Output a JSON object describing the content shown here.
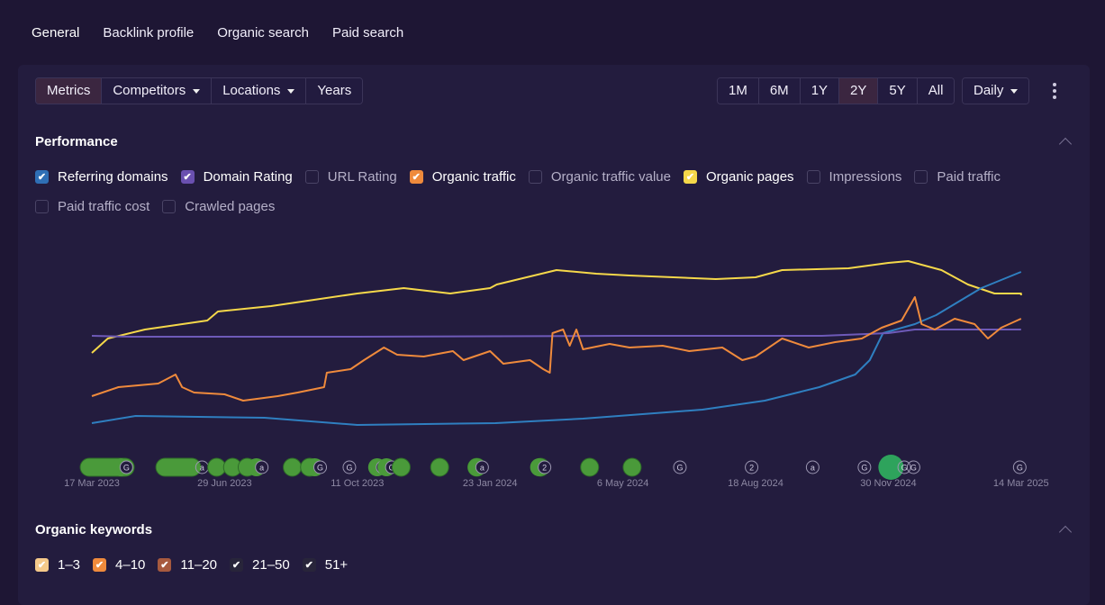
{
  "tabs": [
    "General",
    "Backlink profile",
    "Organic search",
    "Paid search"
  ],
  "toolbar": {
    "left": [
      {
        "label": "Metrics",
        "active": true,
        "dropdown": false
      },
      {
        "label": "Competitors",
        "dropdown": true
      },
      {
        "label": "Locations",
        "dropdown": true
      },
      {
        "label": "Years",
        "dropdown": false
      }
    ],
    "ranges": [
      {
        "label": "1M"
      },
      {
        "label": "6M"
      },
      {
        "label": "1Y"
      },
      {
        "label": "2Y",
        "active": true
      },
      {
        "label": "5Y"
      },
      {
        "label": "All"
      }
    ],
    "interval": "Daily"
  },
  "performance": {
    "title": "Performance",
    "metrics": [
      {
        "label": "Referring domains",
        "checked": true,
        "color": "#2f6fb5"
      },
      {
        "label": "Domain Rating",
        "checked": true,
        "color": "#6a50b0"
      },
      {
        "label": "URL Rating",
        "checked": false
      },
      {
        "label": "Organic traffic",
        "checked": true,
        "color": "#ef8a3c"
      },
      {
        "label": "Organic traffic value",
        "checked": false
      },
      {
        "label": "Organic pages",
        "checked": true,
        "color": "#f5d84a"
      },
      {
        "label": "Impressions",
        "checked": false
      },
      {
        "label": "Paid traffic",
        "checked": false
      },
      {
        "label": "Paid traffic cost",
        "checked": false
      },
      {
        "label": "Crawled pages",
        "checked": false
      }
    ]
  },
  "chart_data": {
    "type": "line",
    "x_ticks": [
      "17 Mar 2023",
      "29 Jun 2023",
      "11 Oct 2023",
      "23 Jan 2024",
      "6 May 2024",
      "18 Aug 2024",
      "30 Nov 2024",
      "14 Mar 2025"
    ],
    "note": "x in tick-index units (0 = 17 Mar 2023, 7 = 14 Mar 2025); y relative 0-100, no axis shown",
    "series": [
      {
        "name": "Organic pages",
        "color": "#f5d84a",
        "points": [
          [
            0,
            44
          ],
          [
            0.12,
            52
          ],
          [
            0.4,
            57
          ],
          [
            0.87,
            62
          ],
          [
            0.95,
            67
          ],
          [
            1.35,
            70
          ],
          [
            2.0,
            77
          ],
          [
            2.35,
            80
          ],
          [
            2.7,
            77
          ],
          [
            3.0,
            80
          ],
          [
            3.05,
            82
          ],
          [
            3.5,
            90
          ],
          [
            3.8,
            88
          ],
          [
            4.05,
            87
          ],
          [
            4.7,
            85
          ],
          [
            5.0,
            86
          ],
          [
            5.2,
            90
          ],
          [
            5.7,
            91
          ],
          [
            6.0,
            94
          ],
          [
            6.15,
            95
          ],
          [
            6.4,
            90
          ],
          [
            6.6,
            82
          ],
          [
            6.8,
            77
          ],
          [
            7.0,
            77
          ],
          [
            7.0,
            76
          ]
        ]
      },
      {
        "name": "Referring domains",
        "color": "#2f7fc0",
        "points": [
          [
            0,
            5
          ],
          [
            0.33,
            9
          ],
          [
            1.3,
            8
          ],
          [
            2.0,
            4
          ],
          [
            3.04,
            5
          ],
          [
            3.7,
            7.5
          ],
          [
            4.6,
            12.5
          ],
          [
            5.07,
            17.5
          ],
          [
            5.48,
            25
          ],
          [
            5.75,
            32
          ],
          [
            5.86,
            40
          ],
          [
            5.96,
            55
          ],
          [
            6.2,
            60
          ],
          [
            6.36,
            65
          ],
          [
            6.7,
            80
          ],
          [
            7.0,
            89
          ]
        ]
      },
      {
        "name": "Domain Rating",
        "color": "#6e5ab8",
        "points": [
          [
            0,
            53.5
          ],
          [
            0.3,
            53
          ],
          [
            2.0,
            53
          ],
          [
            4.0,
            53.5
          ],
          [
            5.5,
            53.5
          ],
          [
            6.0,
            55
          ],
          [
            6.2,
            57
          ],
          [
            7.0,
            57
          ]
        ]
      },
      {
        "name": "Organic traffic",
        "color": "#ef8a3c",
        "points": [
          [
            0,
            20
          ],
          [
            0.2,
            25
          ],
          [
            0.35,
            26
          ],
          [
            0.5,
            27
          ],
          [
            0.63,
            32
          ],
          [
            0.68,
            25
          ],
          [
            0.77,
            22
          ],
          [
            1.0,
            21
          ],
          [
            1.14,
            17.5
          ],
          [
            1.4,
            20
          ],
          [
            1.55,
            22
          ],
          [
            1.75,
            25
          ],
          [
            1.77,
            33
          ],
          [
            1.95,
            35
          ],
          [
            2.05,
            40
          ],
          [
            2.2,
            47
          ],
          [
            2.3,
            43
          ],
          [
            2.5,
            42
          ],
          [
            2.72,
            45
          ],
          [
            2.8,
            40
          ],
          [
            3.0,
            45
          ],
          [
            3.1,
            38
          ],
          [
            3.3,
            40
          ],
          [
            3.4,
            35
          ],
          [
            3.45,
            33
          ],
          [
            3.47,
            55
          ],
          [
            3.55,
            57
          ],
          [
            3.6,
            48
          ],
          [
            3.65,
            57
          ],
          [
            3.7,
            46
          ],
          [
            3.9,
            49
          ],
          [
            4.05,
            47
          ],
          [
            4.3,
            48
          ],
          [
            4.5,
            45
          ],
          [
            4.75,
            47
          ],
          [
            4.9,
            40
          ],
          [
            5.0,
            42
          ],
          [
            5.2,
            52
          ],
          [
            5.4,
            47
          ],
          [
            5.6,
            50
          ],
          [
            5.8,
            52
          ],
          [
            5.95,
            58
          ],
          [
            6.1,
            62
          ],
          [
            6.2,
            75
          ],
          [
            6.25,
            60
          ],
          [
            6.35,
            57
          ],
          [
            6.5,
            63
          ],
          [
            6.65,
            60
          ],
          [
            6.75,
            52
          ],
          [
            6.85,
            58
          ],
          [
            7.0,
            63
          ]
        ]
      }
    ],
    "events": [
      {
        "x": -0.02,
        "kind": "green",
        "w": 3
      },
      {
        "x": 0.26,
        "kind": "greenicon",
        "label": "G"
      },
      {
        "x": 0.55,
        "kind": "green",
        "w": 2.5
      },
      {
        "x": 0.83,
        "kind": "icon",
        "label": "a"
      },
      {
        "x": 0.94,
        "kind": "green"
      },
      {
        "x": 1.06,
        "kind": "green"
      },
      {
        "x": 1.17,
        "kind": "green"
      },
      {
        "x": 1.28,
        "kind": "greenicon",
        "label": "a"
      },
      {
        "x": 1.51,
        "kind": "green"
      },
      {
        "x": 1.64,
        "kind": "green"
      },
      {
        "x": 1.72,
        "kind": "greenicon",
        "label": "G"
      },
      {
        "x": 1.94,
        "kind": "icon",
        "label": "G"
      },
      {
        "x": 2.19,
        "kind": "greenicon",
        "label": "G"
      },
      {
        "x": 2.26,
        "kind": "greenicon",
        "label": "G"
      },
      {
        "x": 2.33,
        "kind": "green"
      },
      {
        "x": 2.62,
        "kind": "green"
      },
      {
        "x": 2.9,
        "kind": "green"
      },
      {
        "x": 2.94,
        "kind": "greenicon",
        "label": "a"
      },
      {
        "x": 3.38,
        "kind": "green"
      },
      {
        "x": 3.41,
        "kind": "greenicon",
        "label": "2"
      },
      {
        "x": 3.75,
        "kind": "green"
      },
      {
        "x": 4.07,
        "kind": "green"
      },
      {
        "x": 4.43,
        "kind": "icon",
        "label": "G"
      },
      {
        "x": 4.97,
        "kind": "icon",
        "label": "2"
      },
      {
        "x": 5.43,
        "kind": "icon",
        "label": "a"
      },
      {
        "x": 5.82,
        "kind": "icon",
        "label": "G"
      },
      {
        "x": 6.02,
        "kind": "big"
      },
      {
        "x": 6.12,
        "kind": "icon",
        "label": "G"
      },
      {
        "x": 6.19,
        "kind": "icon",
        "label": "G"
      },
      {
        "x": 6.99,
        "kind": "icon",
        "label": "G"
      }
    ]
  },
  "keywords": {
    "title": "Organic keywords",
    "items": [
      {
        "label": "1–3",
        "color": "#f5c98a"
      },
      {
        "label": "4–10",
        "color": "#ef8a3c"
      },
      {
        "label": "11–20",
        "color": "#a75a3e"
      },
      {
        "label": "21–50",
        "color": "#28253a"
      },
      {
        "label": "51+",
        "color": "#28253a"
      }
    ]
  }
}
